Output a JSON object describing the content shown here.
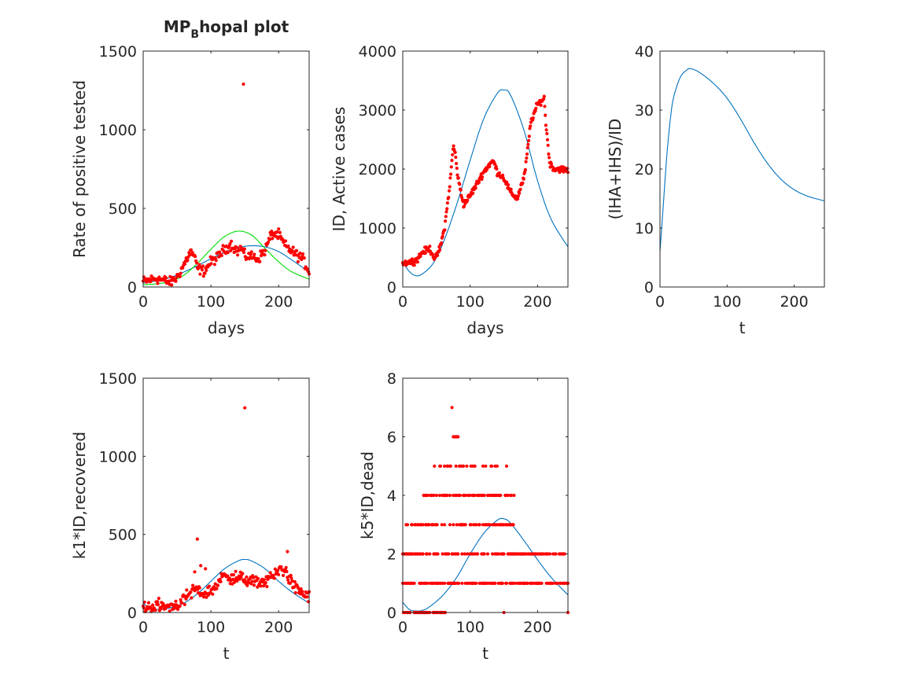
{
  "figure": {
    "colors": {
      "model": "#0072BD",
      "fit": "#00DD00",
      "data": "#FF0000",
      "axes": "#262626"
    }
  },
  "chart_data": [
    {
      "id": "p1",
      "type": "scatter",
      "title_main": "MP",
      "title_sub": "B",
      "title_rest": "hopal plot",
      "xlabel": "days",
      "ylabel": "Rate of positive tested",
      "xlim": [
        0,
        245
      ],
      "ylim": [
        0,
        1500
      ],
      "xticks": [
        0,
        100,
        200
      ],
      "yticks": [
        0,
        500,
        1000,
        1500
      ],
      "series": [
        {
          "kind": "scatter",
          "color": "#FF0000",
          "points_x": [
            148
          ],
          "points_y": [
            1290
          ]
        }
      ],
      "curves": [
        {
          "color": "#0072BD",
          "x": [
            0,
            20,
            40,
            60,
            80,
            100,
            120,
            140,
            160,
            180,
            200,
            220,
            245
          ],
          "y": [
            25,
            40,
            60,
            95,
            135,
            180,
            220,
            250,
            262,
            255,
            225,
            170,
            95
          ]
        },
        {
          "color": "#00DD00",
          "x": [
            0,
            20,
            40,
            60,
            80,
            100,
            120,
            140,
            160,
            180,
            200,
            220,
            245
          ],
          "y": [
            15,
            20,
            35,
            75,
            150,
            240,
            320,
            355,
            330,
            245,
            160,
            95,
            50
          ]
        }
      ],
      "scatter_generated": [
        {
          "color": "#FF0000",
          "keys_x": [
            0,
            20,
            40,
            50,
            60,
            70,
            75,
            80,
            90,
            100,
            110,
            120,
            130,
            140,
            145,
            150,
            160,
            170,
            180,
            185,
            190,
            200,
            210,
            220,
            235,
            245
          ],
          "keys_y": [
            35,
            55,
            30,
            60,
            140,
            225,
            200,
            120,
            100,
            160,
            190,
            240,
            270,
            225,
            250,
            195,
            195,
            180,
            235,
            290,
            340,
            330,
            260,
            225,
            180,
            100
          ],
          "n": 240,
          "jitter": 28
        }
      ]
    },
    {
      "id": "p2",
      "type": "scatter",
      "xlabel": "days",
      "ylabel": "ID, Active cases",
      "xlim": [
        0,
        245
      ],
      "ylim": [
        0,
        4000
      ],
      "xticks": [
        0,
        100,
        200
      ],
      "yticks": [
        0,
        1000,
        2000,
        3000,
        4000
      ],
      "series": [],
      "curves": [
        {
          "color": "#0072BD",
          "x": [
            0,
            10,
            20,
            30,
            45,
            60,
            80,
            100,
            120,
            140,
            150,
            160,
            180,
            200,
            220,
            245
          ],
          "y": [
            420,
            260,
            190,
            230,
            400,
            750,
            1400,
            2150,
            2850,
            3280,
            3340,
            3250,
            2650,
            1800,
            1150,
            680
          ]
        }
      ],
      "scatter_generated": [
        {
          "color": "#FF0000",
          "keys_x": [
            0,
            20,
            30,
            40,
            48,
            55,
            62,
            70,
            75,
            78,
            82,
            90,
            100,
            110,
            120,
            130,
            135,
            140,
            150,
            160,
            170,
            175,
            180,
            185,
            190,
            200,
            210,
            212,
            218,
            225,
            235,
            245
          ],
          "keys_y": [
            400,
            450,
            600,
            650,
            470,
            650,
            1000,
            1750,
            2400,
            2250,
            1850,
            1400,
            1550,
            1750,
            1950,
            2100,
            2130,
            1950,
            1850,
            1600,
            1500,
            1700,
            1850,
            2300,
            2800,
            3100,
            3200,
            2800,
            2100,
            2000,
            2000,
            1980
          ],
          "n": 300,
          "jitter": 45
        }
      ]
    },
    {
      "id": "p3",
      "type": "line",
      "xlabel": "t",
      "ylabel": "(IHA+IHS)/ID",
      "xlim": [
        0,
        245
      ],
      "ylim": [
        0,
        40
      ],
      "xticks": [
        0,
        100,
        200
      ],
      "yticks": [
        0,
        10,
        20,
        30,
        40
      ],
      "series": [],
      "curves": [
        {
          "color": "#0072BD",
          "x": [
            0,
            5,
            10,
            15,
            20,
            30,
            40,
            47,
            60,
            80,
            100,
            120,
            140,
            160,
            180,
            200,
            220,
            245
          ],
          "y": [
            6,
            14,
            22,
            28,
            32,
            35.5,
            36.8,
            37,
            36.3,
            34.5,
            32,
            28.5,
            24.5,
            21,
            18.3,
            16.5,
            15.4,
            14.6
          ]
        }
      ],
      "scatter_generated": []
    },
    {
      "id": "p4",
      "type": "scatter",
      "xlabel": "t",
      "ylabel": "k1*ID,recovered",
      "xlim": [
        0,
        245
      ],
      "ylim": [
        0,
        1500
      ],
      "xticks": [
        0,
        100,
        200
      ],
      "yticks": [
        0,
        500,
        1000,
        1500
      ],
      "series": [
        {
          "kind": "scatter",
          "color": "#FF0000",
          "points_x": [
            150,
            80,
            213,
            76,
            85,
            92
          ],
          "points_y": [
            1310,
            470,
            390,
            260,
            300,
            280
          ]
        }
      ],
      "curves": [
        {
          "color": "#0072BD",
          "x": [
            0,
            10,
            20,
            40,
            60,
            80,
            100,
            120,
            140,
            150,
            160,
            180,
            200,
            220,
            245
          ],
          "y": [
            60,
            25,
            20,
            30,
            60,
            120,
            200,
            280,
            330,
            340,
            330,
            280,
            200,
            130,
            60
          ]
        }
      ],
      "scatter_generated": [
        {
          "color": "#FF0000",
          "keys_x": [
            0,
            20,
            40,
            55,
            65,
            75,
            90,
            100,
            110,
            120,
            135,
            150,
            165,
            180,
            195,
            205,
            215,
            225,
            245
          ],
          "keys_y": [
            30,
            40,
            40,
            60,
            100,
            150,
            120,
            140,
            180,
            240,
            220,
            215,
            190,
            200,
            240,
            290,
            230,
            150,
            100
          ],
          "n": 245,
          "jitter": 35
        }
      ]
    },
    {
      "id": "p5",
      "type": "scatter",
      "xlabel": "t",
      "ylabel": "k5*ID,dead",
      "xlim": [
        0,
        245
      ],
      "ylim": [
        0,
        8
      ],
      "xticks": [
        0,
        100,
        200
      ],
      "yticks": [
        0,
        2,
        4,
        6,
        8
      ],
      "series": [
        {
          "kind": "scatter",
          "color": "#FF0000",
          "points_x": [
            73,
            75,
            77,
            79,
            80,
            82,
            150,
            245
          ],
          "points_y": [
            7,
            6,
            6,
            6,
            6,
            6,
            0,
            0
          ]
        }
      ],
      "curves": [
        {
          "color": "#0072BD",
          "x": [
            0,
            10,
            20,
            30,
            40,
            60,
            80,
            100,
            120,
            140,
            150,
            160,
            180,
            200,
            220,
            245
          ],
          "y": [
            0.35,
            0.1,
            0.05,
            0.08,
            0.2,
            0.6,
            1.2,
            2.0,
            2.7,
            3.15,
            3.2,
            3.05,
            2.45,
            1.8,
            1.2,
            0.6
          ]
        }
      ],
      "level_bands": [
        {
          "y": 0,
          "x_from": 0,
          "x_to": 65,
          "density": 0.55
        },
        {
          "y": 1,
          "x_from": 0,
          "x_to": 245,
          "density": 0.55
        },
        {
          "y": 2,
          "x_from": 0,
          "x_to": 245,
          "density": 0.5
        },
        {
          "y": 3,
          "x_from": 5,
          "x_to": 165,
          "density": 0.4
        },
        {
          "y": 4,
          "x_from": 30,
          "x_to": 170,
          "density": 0.35
        },
        {
          "y": 5,
          "x_from": 35,
          "x_to": 155,
          "density": 0.25
        }
      ],
      "scatter_generated": []
    }
  ]
}
